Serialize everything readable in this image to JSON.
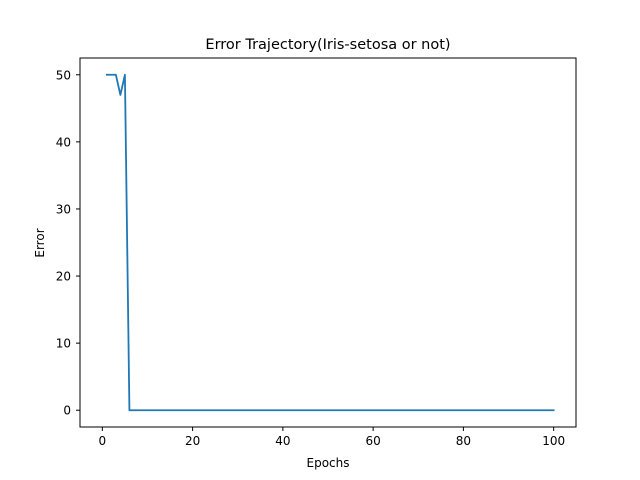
{
  "chart_data": {
    "type": "line",
    "title": "Error Trajectory(Iris-setosa or not)",
    "xlabel": "Epochs",
    "ylabel": "Error",
    "xlim": [
      -4.95,
      104.95
    ],
    "ylim": [
      -2.5,
      52.5
    ],
    "xticks": [
      0,
      20,
      40,
      60,
      80,
      100
    ],
    "yticks": [
      0,
      10,
      20,
      30,
      40,
      50
    ],
    "grid": false,
    "series": [
      {
        "color": "#1f77b4",
        "x": [
          1,
          2,
          3,
          4,
          5,
          6,
          7,
          8,
          9,
          10,
          20,
          30,
          40,
          50,
          60,
          70,
          80,
          90,
          100
        ],
        "y": [
          50,
          50,
          50,
          47,
          50,
          0,
          0,
          0,
          0,
          0,
          0,
          0,
          0,
          0,
          0,
          0,
          0,
          0,
          0
        ]
      }
    ]
  }
}
